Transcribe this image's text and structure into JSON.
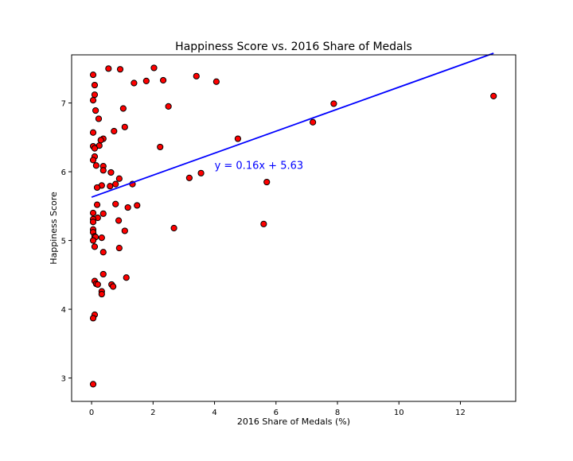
{
  "chart_data": {
    "type": "scatter",
    "title": "Happiness Score vs. 2016 Share of Medals",
    "xlabel": "2016 Share of Medals (%)",
    "ylabel": "Happiness Score",
    "xlim": [
      -0.65,
      13.8
    ],
    "ylim": [
      2.66,
      7.7
    ],
    "xticks": [
      0,
      2,
      4,
      6,
      8,
      10,
      12
    ],
    "yticks": [
      3,
      4,
      5,
      6,
      7
    ],
    "grid": false,
    "marker_color": "#ff0000",
    "marker_edge_color": "#000000",
    "line_color": "#0000ff",
    "annotation": {
      "text": "y = 0.16x + 5.63",
      "x": 4.0,
      "y": 6.04,
      "color": "#0000ff"
    },
    "regression": {
      "slope": 0.16,
      "intercept": 5.63,
      "x_range": [
        0.0,
        13.08
      ]
    },
    "points": [
      [
        0.05,
        7.41
      ],
      [
        0.93,
        7.49
      ],
      [
        0.55,
        7.5
      ],
      [
        2.03,
        7.51
      ],
      [
        3.41,
        7.39
      ],
      [
        2.33,
        7.33
      ],
      [
        1.78,
        7.32
      ],
      [
        4.06,
        7.31
      ],
      [
        1.38,
        7.29
      ],
      [
        0.1,
        7.26
      ],
      [
        0.1,
        7.12
      ],
      [
        13.08,
        7.1
      ],
      [
        0.05,
        7.04
      ],
      [
        7.88,
        6.99
      ],
      [
        2.5,
        6.95
      ],
      [
        1.03,
        6.92
      ],
      [
        0.13,
        6.89
      ],
      [
        0.23,
        6.77
      ],
      [
        7.2,
        6.72
      ],
      [
        1.08,
        6.65
      ],
      [
        0.73,
        6.59
      ],
      [
        0.05,
        6.57
      ],
      [
        4.76,
        6.48
      ],
      [
        0.38,
        6.48
      ],
      [
        0.3,
        6.46
      ],
      [
        0.25,
        6.38
      ],
      [
        0.05,
        6.37
      ],
      [
        0.1,
        6.34
      ],
      [
        2.23,
        6.36
      ],
      [
        0.1,
        6.22
      ],
      [
        0.05,
        6.17
      ],
      [
        0.15,
        6.09
      ],
      [
        0.38,
        6.08
      ],
      [
        0.38,
        6.02
      ],
      [
        0.63,
        5.99
      ],
      [
        3.56,
        5.98
      ],
      [
        3.18,
        5.91
      ],
      [
        0.9,
        5.9
      ],
      [
        5.7,
        5.85
      ],
      [
        0.78,
        5.82
      ],
      [
        1.33,
        5.82
      ],
      [
        0.33,
        5.8
      ],
      [
        0.6,
        5.79
      ],
      [
        0.18,
        5.77
      ],
      [
        0.78,
        5.53
      ],
      [
        0.18,
        5.52
      ],
      [
        1.48,
        5.51
      ],
      [
        1.18,
        5.48
      ],
      [
        0.05,
        5.4
      ],
      [
        0.38,
        5.39
      ],
      [
        0.2,
        5.33
      ],
      [
        0.05,
        5.31
      ],
      [
        0.88,
        5.29
      ],
      [
        0.05,
        5.27
      ],
      [
        5.6,
        5.24
      ],
      [
        2.68,
        5.18
      ],
      [
        0.05,
        5.16
      ],
      [
        1.08,
        5.14
      ],
      [
        0.05,
        5.12
      ],
      [
        0.1,
        5.06
      ],
      [
        0.13,
        5.05
      ],
      [
        0.33,
        5.04
      ],
      [
        0.05,
        5.0
      ],
      [
        0.1,
        4.91
      ],
      [
        0.9,
        4.89
      ],
      [
        0.38,
        4.83
      ],
      [
        0.38,
        4.51
      ],
      [
        1.13,
        4.46
      ],
      [
        0.1,
        4.41
      ],
      [
        0.15,
        4.37
      ],
      [
        0.2,
        4.36
      ],
      [
        0.65,
        4.36
      ],
      [
        0.7,
        4.33
      ],
      [
        0.33,
        4.26
      ],
      [
        0.33,
        4.22
      ],
      [
        0.1,
        3.92
      ],
      [
        0.05,
        3.87
      ],
      [
        0.05,
        2.91
      ]
    ]
  }
}
